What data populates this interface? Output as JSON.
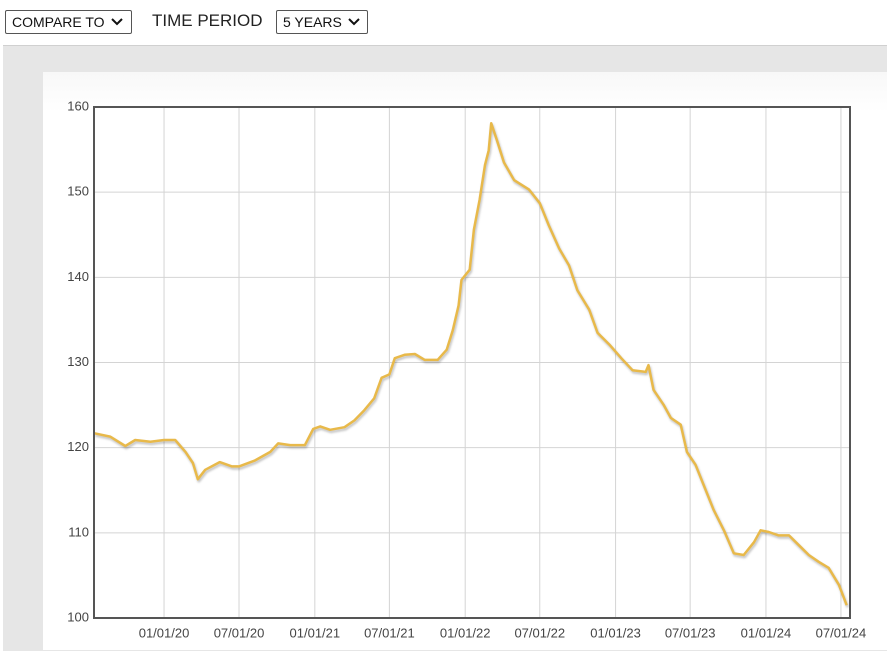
{
  "controls": {
    "compare_to": "COMPARE TO",
    "time_period_label": "TIME PERIOD",
    "time_period": "5 YEARS"
  },
  "chart_data": {
    "type": "line",
    "color": "#e8b94a",
    "grid": true,
    "xlim": [
      "07/15/19",
      "07/23/24"
    ],
    "xticks": [
      "01/01/20",
      "07/01/20",
      "01/01/21",
      "07/01/21",
      "01/01/22",
      "07/01/22",
      "01/01/23",
      "07/01/23",
      "01/01/24",
      "07/01/24"
    ],
    "ylim": [
      100,
      160
    ],
    "yticks": [
      100,
      110,
      120,
      130,
      140,
      150,
      160
    ],
    "x": [
      "07/15/19",
      "08/23/19",
      "09/29/19",
      "10/23/19",
      "11/29/19",
      "01/01/20",
      "01/28/20",
      "02/22/20",
      "03/11/20",
      "03/23/20",
      "04/10/20",
      "05/15/20",
      "06/14/20",
      "07/01/20",
      "08/09/20",
      "09/15/20",
      "10/04/20",
      "11/02/20",
      "12/08/20",
      "12/28/20",
      "01/14/21",
      "02/07/21",
      "03/14/21",
      "04/07/21",
      "05/01/21",
      "05/25/21",
      "06/12/21",
      "07/01/21",
      "07/14/21",
      "08/07/21",
      "09/01/21",
      "09/25/21",
      "10/26/21",
      "11/17/21",
      "12/02/21",
      "12/16/21",
      "12/23/21",
      "01/12/22",
      "01/22/22",
      "02/05/22",
      "02/18/22",
      "02/27/22",
      "03/05/22",
      "03/19/22",
      "04/05/22",
      "04/30/22",
      "06/05/22",
      "07/01/22",
      "07/23/22",
      "08/17/22",
      "09/10/22",
      "09/30/22",
      "10/29/22",
      "11/18/22",
      "12/17/22",
      "01/15/23",
      "02/11/23",
      "03/15/23",
      "03/22/23",
      "04/03/23",
      "04/28/23",
      "05/15/23",
      "06/08/23",
      "06/23/23",
      "07/14/23",
      "08/03/23",
      "08/27/23",
      "09/21/23",
      "10/15/23",
      "11/08/23",
      "12/03/23",
      "12/19/23",
      "01/08/24",
      "02/01/24",
      "02/26/24",
      "03/20/24",
      "04/14/24",
      "05/08/24",
      "06/01/24",
      "06/26/24",
      "07/15/24"
    ],
    "values": [
      121.7,
      121.3,
      120.2,
      120.9,
      120.7,
      120.9,
      120.9,
      119.5,
      118.2,
      116.3,
      117.4,
      118.3,
      117.8,
      117.8,
      118.5,
      119.5,
      120.5,
      120.3,
      120.3,
      122.2,
      122.5,
      122.1,
      122.4,
      123.2,
      124.4,
      125.8,
      128.2,
      128.6,
      130.5,
      130.9,
      131.0,
      130.3,
      130.3,
      131.5,
      133.8,
      136.7,
      139.7,
      140.9,
      145.6,
      149.1,
      153.2,
      154.9,
      158.1,
      156.1,
      153.5,
      151.4,
      150.3,
      148.7,
      146.1,
      143.4,
      141.4,
      138.5,
      136.2,
      133.5,
      132.1,
      130.5,
      129.1,
      128.9,
      129.7,
      126.8,
      125.0,
      123.5,
      122.7,
      119.5,
      118.0,
      115.6,
      112.7,
      110.3,
      107.6,
      107.4,
      108.9,
      110.3,
      110.1,
      109.7,
      109.7,
      108.6,
      107.4,
      106.6,
      105.9,
      103.9,
      101.5
    ]
  }
}
